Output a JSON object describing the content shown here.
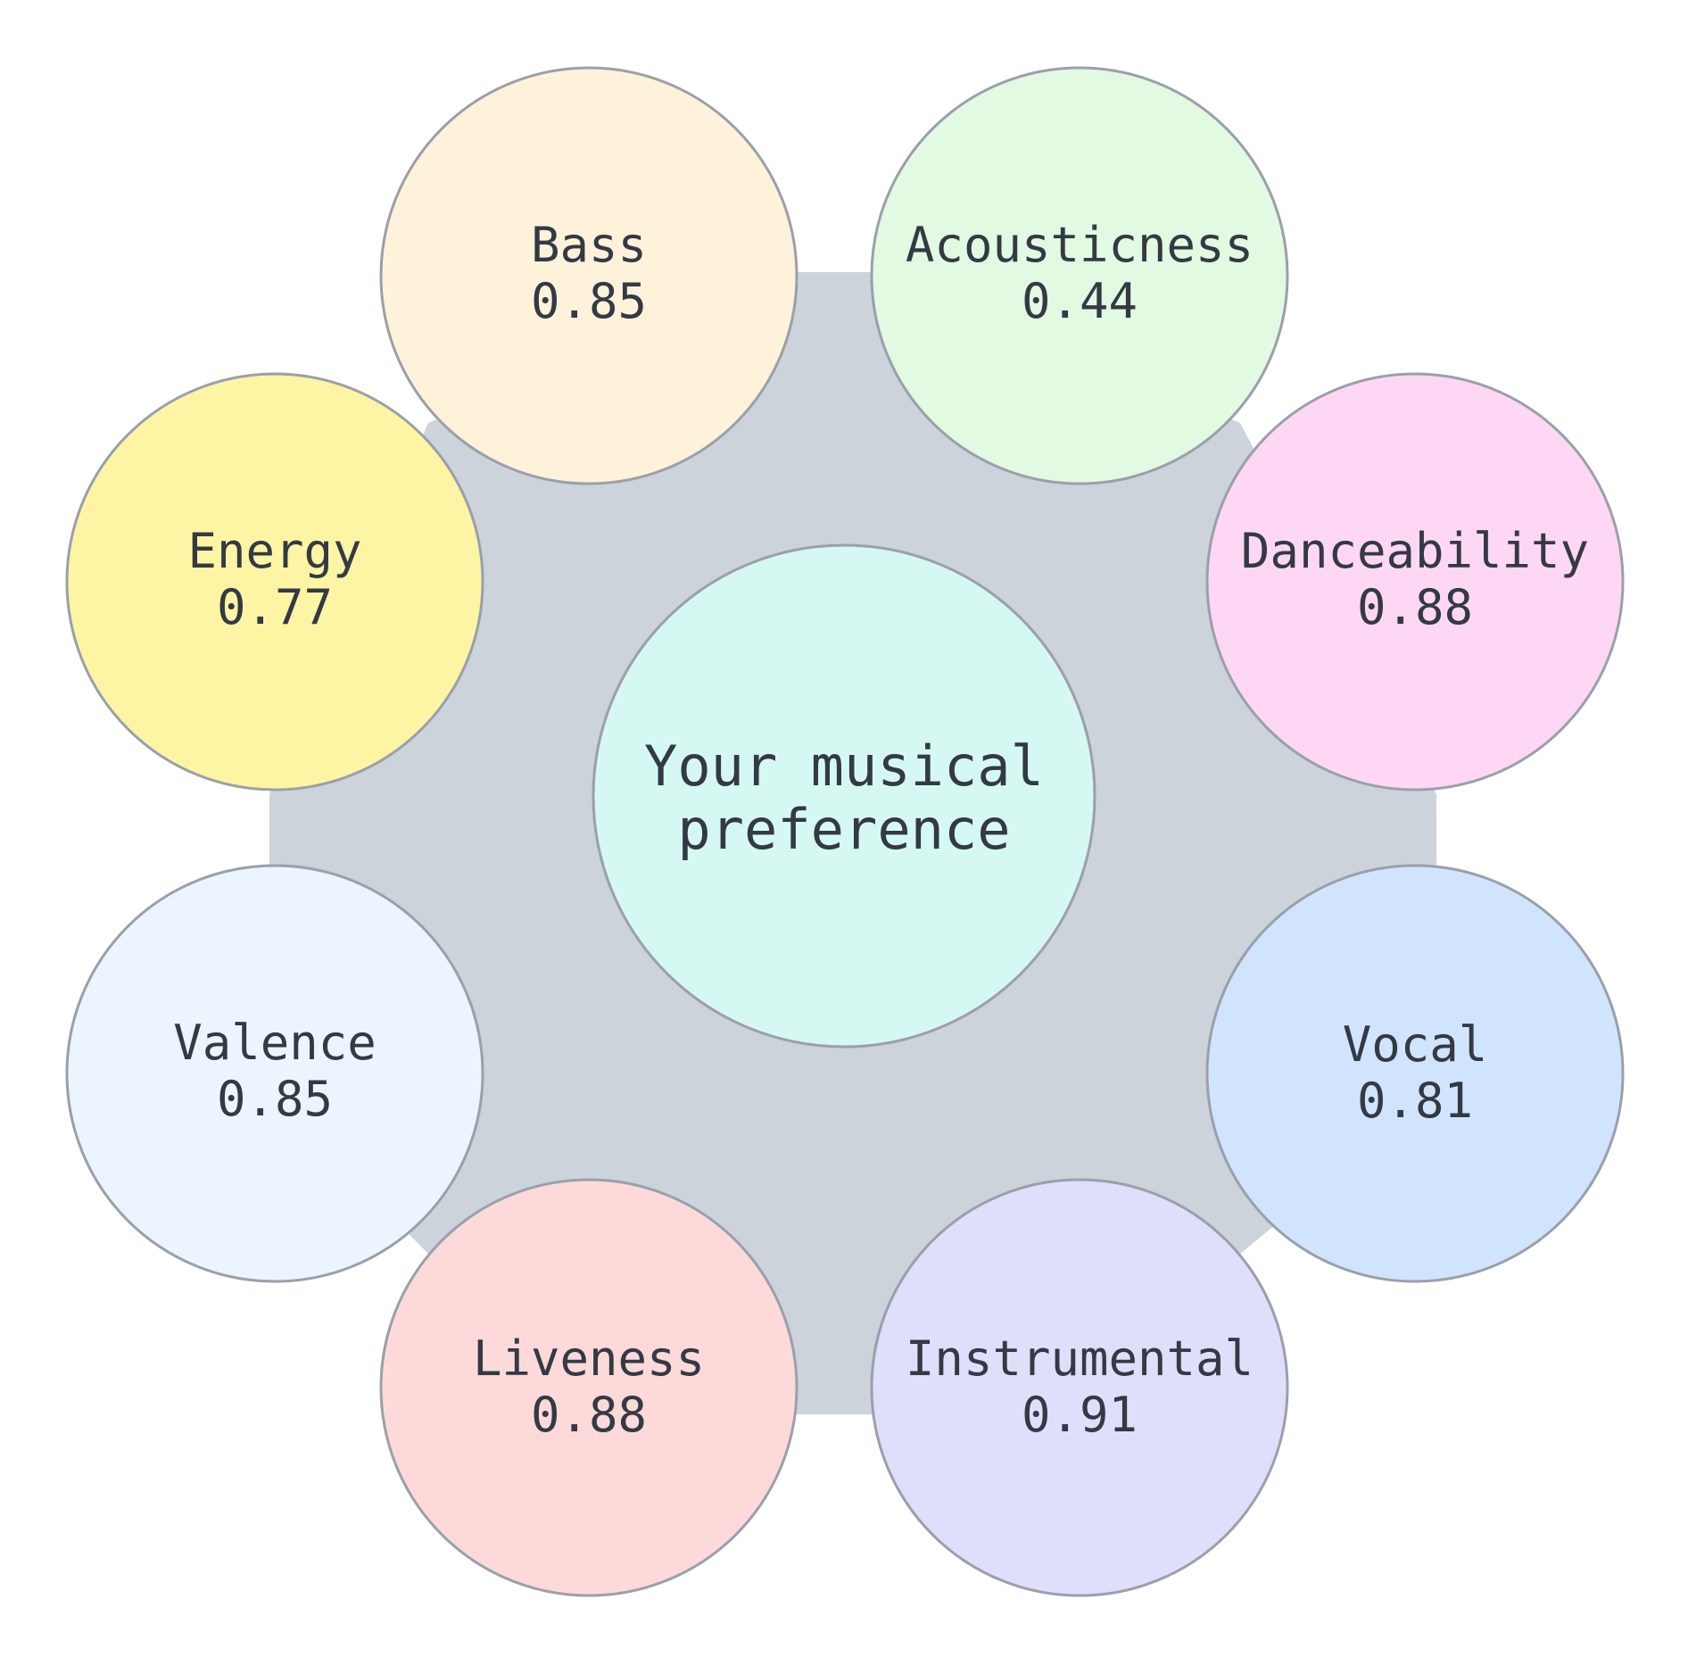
{
  "center": {
    "line1": "Your musical",
    "line2": "preference",
    "color": "#d6f8f2"
  },
  "background_color": "#ccd3db",
  "stroke_color": "#9aa0aa",
  "features": [
    {
      "label": "Bass",
      "value": "0.85",
      "color": "#fef2da"
    },
    {
      "label": "Acousticness",
      "value": "0.44",
      "color": "#e2f9e2"
    },
    {
      "label": "Danceability",
      "value": "0.88",
      "color": "#fdd7f4"
    },
    {
      "label": "Vocal",
      "value": "0.81",
      "color": "#d1e4fd"
    },
    {
      "label": "Instrumental",
      "value": "0.91",
      "color": "#dfdffc"
    },
    {
      "label": "Liveness",
      "value": "0.88",
      "color": "#fdd9da"
    },
    {
      "label": "Valence",
      "value": "0.85",
      "color": "#ecf4fe"
    },
    {
      "label": "Energy",
      "value": "0.77",
      "color": "#fef5a4"
    }
  ]
}
